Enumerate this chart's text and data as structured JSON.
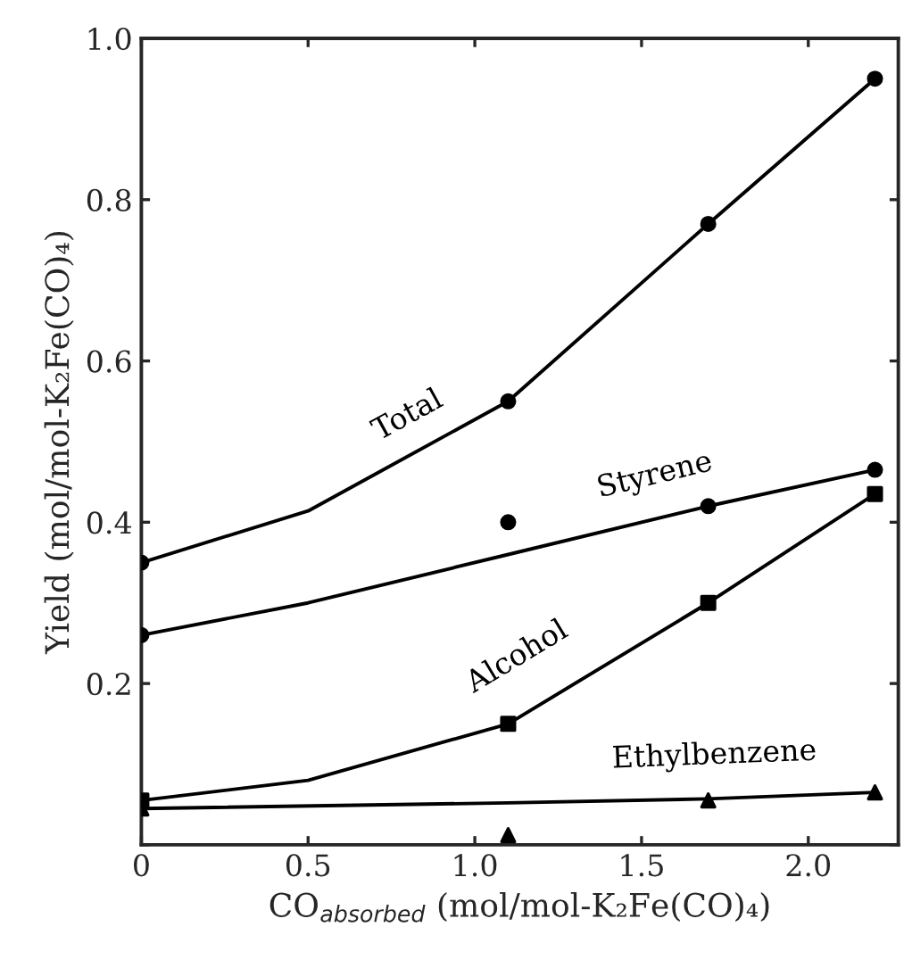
{
  "chart_data": {
    "type": "line",
    "xlabel": "CO$_{absorbed}$ (mol/mol-K₂Fe(CO)₄)",
    "ylabel": "Yield (mol/mol-K₂Fe(CO)₄)",
    "xlim": [
      0,
      2.27
    ],
    "xticks": [
      0,
      0.5,
      {
        "value": 1,
        "label": "1.0"
      },
      1.5,
      {
        "value": 2,
        "label": "2.0"
      }
    ],
    "ylim": [
      0,
      1.0
    ],
    "yticks": [
      {
        "value": 0,
        "label": null
      },
      0.2,
      0.4,
      0.6,
      0.8,
      {
        "value": 1,
        "label": "1.0"
      }
    ],
    "grid": false,
    "legend": false,
    "line_style": "solid",
    "series": [
      {
        "name": "Total",
        "color": "#000000",
        "marker": "none",
        "x": [
          0,
          0.5,
          1.1,
          1.7,
          2.2
        ],
        "values": [
          0.35,
          0.414,
          0.55,
          0.77,
          0.95
        ]
      },
      {
        "type": "scatter",
        "color": "#000000",
        "marker": "circle",
        "x": [
          0,
          1.1,
          1.7,
          2.2
        ],
        "values": [
          0.35,
          0.55,
          0.77,
          0.95
        ]
      },
      {
        "name": "Styrene",
        "color": "#000000",
        "marker": "none",
        "x": [
          0,
          0.5,
          1.1,
          1.7,
          2.2
        ],
        "values": [
          0.26,
          0.3,
          0.36,
          0.42,
          0.465
        ]
      },
      {
        "type": "scatter",
        "color": "#000000",
        "marker": "circle",
        "x": [
          0,
          1.1,
          1.7,
          2.2
        ],
        "values": [
          0.26,
          0.4,
          0.42,
          0.465
        ]
      },
      {
        "name": "Alcohol",
        "color": "#000000",
        "marker": "none",
        "x": [
          0,
          0.5,
          1.1,
          1.7,
          2.2
        ],
        "values": [
          0.055,
          0.08,
          0.15,
          0.3,
          0.435
        ]
      },
      {
        "type": "scatter",
        "color": "#000000",
        "marker": "square",
        "x": [
          0,
          1.1,
          1.7,
          2.2
        ],
        "values": [
          0.055,
          0.15,
          0.3,
          0.435
        ]
      },
      {
        "name": "Ethylbenzene",
        "color": "#000000",
        "marker": "none",
        "x": [
          0,
          1.1,
          1.7,
          2.2
        ],
        "values": [
          0.045,
          0.052,
          0.057,
          0.065
        ]
      },
      {
        "type": "scatter",
        "color": "#000000",
        "marker": "triangle",
        "x": [
          0,
          1.1,
          1.7,
          2.2
        ],
        "values": [
          0.045,
          0.012,
          0.055,
          0.065
        ]
      }
    ]
  }
}
